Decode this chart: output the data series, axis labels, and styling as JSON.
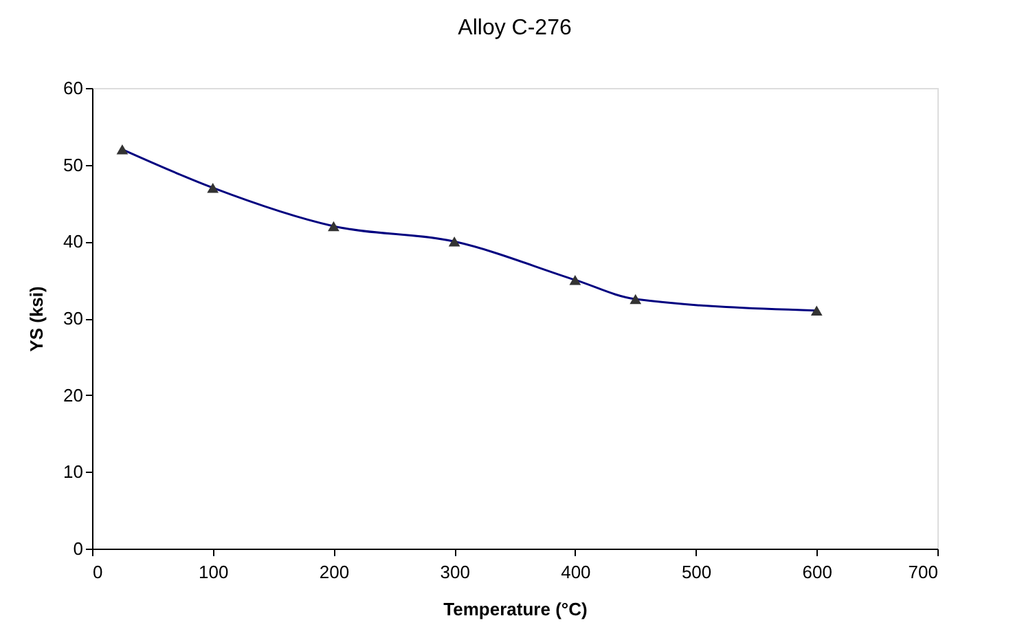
{
  "chart_data": {
    "type": "line",
    "title": "Alloy C-276",
    "xlabel": "Temperature (°C)",
    "ylabel": "YS (ksi)",
    "x": [
      25,
      100,
      200,
      300,
      400,
      450,
      600
    ],
    "series": [
      {
        "color": "#000080",
        "values": [
          52,
          47,
          42,
          40,
          35,
          32.5,
          31
        ]
      }
    ],
    "xlim": [
      0,
      700
    ],
    "xticks": [
      0,
      100,
      200,
      300,
      400,
      500,
      600,
      700
    ],
    "ylim": [
      0,
      60
    ],
    "yticks": [
      0,
      10,
      20,
      30,
      40,
      50,
      60
    ],
    "grid": false,
    "legend": false,
    "marker": "triangle",
    "line_style": "solid"
  }
}
